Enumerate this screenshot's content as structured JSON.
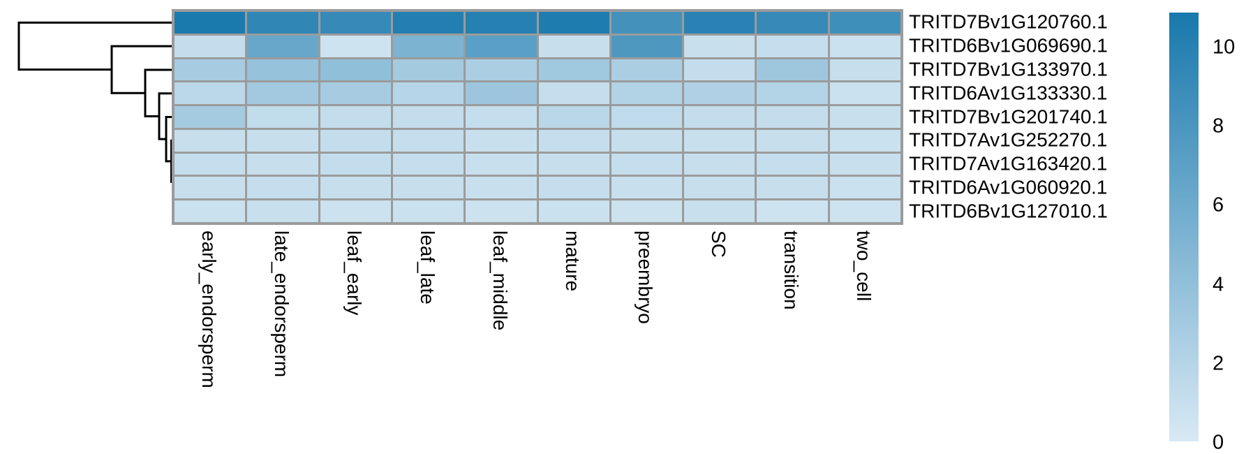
{
  "figure": {
    "background": "#ffffff",
    "gridline_color": "#9b9b9b",
    "dendrogram_color": "#000000",
    "label_color": "#000000"
  },
  "chart_data": {
    "type": "heatmap",
    "title": "",
    "legend_position": "right",
    "columns": [
      "early_endorsperm",
      "late_endorsperm",
      "leaf_early",
      "leaf_late",
      "leaf_middle",
      "mature",
      "preembryo",
      "SC",
      "transition",
      "two_cell"
    ],
    "rows": [
      "TRITD7Bv1G120760.1",
      "TRITD6Bv1G069690.1",
      "TRITD7Bv1G133970.1",
      "TRITD6Av1G133330.1",
      "TRITD7Bv1G201740.1",
      "TRITD7Av1G252270.1",
      "TRITD7Av1G163420.1",
      "TRITD6Av1G060920.1",
      "TRITD6Bv1G127010.1"
    ],
    "values": [
      [
        10.8,
        9.6,
        9.2,
        10.3,
        10.2,
        10.6,
        8.5,
        10.0,
        9.2,
        8.8
      ],
      [
        1.2,
        6.4,
        0.6,
        5.3,
        7.2,
        1.0,
        7.9,
        0.9,
        1.1,
        0.8
      ],
      [
        2.8,
        3.8,
        4.1,
        3.0,
        2.6,
        3.2,
        2.6,
        1.2,
        3.3,
        1.0
      ],
      [
        1.7,
        3.1,
        2.8,
        1.9,
        3.4,
        1.1,
        2.2,
        2.3,
        2.1,
        0.8
      ],
      [
        2.9,
        1.3,
        1.2,
        1.2,
        1.1,
        1.8,
        1.4,
        1.2,
        1.2,
        0.9
      ],
      [
        1.0,
        1.0,
        1.2,
        1.1,
        0.9,
        1.1,
        1.0,
        0.9,
        1.0,
        0.8
      ],
      [
        1.1,
        1.0,
        1.2,
        1.1,
        0.9,
        1.0,
        1.1,
        1.0,
        1.1,
        0.9
      ],
      [
        1.0,
        1.1,
        1.0,
        1.0,
        0.9,
        1.1,
        0.9,
        1.0,
        1.0,
        0.8
      ],
      [
        0.8,
        0.9,
        0.7,
        0.8,
        0.7,
        0.8,
        0.7,
        0.9,
        0.6,
        0.6
      ]
    ],
    "colorbar": {
      "ticks": [
        "10",
        "8",
        "6",
        "4",
        "2",
        "0"
      ],
      "tick_values": [
        10,
        8,
        6,
        4,
        2,
        0
      ],
      "min": 0,
      "max": 11,
      "color_low": "#d8e9f4",
      "color_high": "#1878ac"
    },
    "row_dendrogram": {
      "orientation": "left",
      "merges": [
        {
          "id": "M8",
          "x": 249.0,
          "a": "L7",
          "b": "L8"
        },
        {
          "id": "M7",
          "x": 247.5,
          "a": "L6",
          "b": "M8"
        },
        {
          "id": "M6",
          "x": 245.5,
          "a": "L5",
          "b": "M7"
        },
        {
          "id": "M5",
          "x": 238.0,
          "a": "L4",
          "b": "M6"
        },
        {
          "id": "M4",
          "x": 228.0,
          "a": "L3",
          "b": "M5"
        },
        {
          "id": "M3",
          "x": 208.0,
          "a": "L2",
          "b": "M4"
        },
        {
          "id": "M2",
          "x": 160.0,
          "a": "L1",
          "b": "M3"
        },
        {
          "id": "M1",
          "x": 27.0,
          "a": "L0",
          "b": "M2"
        }
      ]
    }
  }
}
